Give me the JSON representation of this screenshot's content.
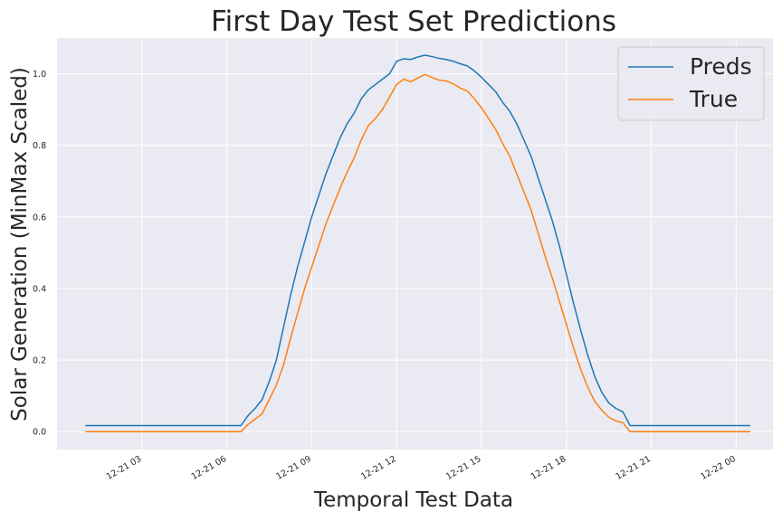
{
  "chart_data": {
    "type": "line",
    "title": "First Day Test Set Predictions",
    "xlabel": "Temporal Test Data",
    "ylabel": "Solar Generation (MinMax Scaled)",
    "x_unit": "hours from 2023-12-21 00:00",
    "xlim": [
      0.0,
      25.3
    ],
    "ylim": [
      -0.05,
      1.1
    ],
    "x_ticks": [
      3,
      6,
      9,
      12,
      15,
      18,
      21,
      24
    ],
    "x_tick_labels": [
      "12-21 03",
      "12-21 06",
      "12-21 09",
      "12-21 12",
      "12-21 15",
      "12-21 18",
      "12-21 21",
      "12-22 00"
    ],
    "y_ticks": [
      0.0,
      0.2,
      0.4,
      0.6,
      0.8,
      1.0
    ],
    "y_tick_labels": [
      "0.0",
      "0.2",
      "0.4",
      "0.6",
      "0.8",
      "1.0"
    ],
    "grid": true,
    "legend_position": "top-right",
    "background": "#eaeaf2",
    "series": [
      {
        "name": "Preds",
        "color": "#1f77b4",
        "x": [
          1.0,
          6.5,
          6.75,
          7.0,
          7.25,
          7.5,
          7.75,
          8.0,
          8.25,
          8.5,
          8.75,
          9.0,
          9.25,
          9.5,
          9.75,
          10.0,
          10.25,
          10.5,
          10.75,
          11.0,
          11.25,
          11.5,
          11.75,
          12.0,
          12.25,
          12.5,
          12.75,
          13.0,
          13.25,
          13.5,
          13.75,
          14.0,
          14.25,
          14.5,
          14.75,
          15.0,
          15.25,
          15.5,
          15.75,
          16.0,
          16.25,
          16.5,
          16.75,
          17.0,
          17.25,
          17.5,
          17.75,
          18.0,
          18.25,
          18.5,
          18.75,
          19.0,
          19.25,
          19.5,
          19.75,
          20.0,
          20.25,
          20.5,
          24.5
        ],
        "values": [
          0.017,
          0.017,
          0.045,
          0.065,
          0.09,
          0.14,
          0.2,
          0.29,
          0.38,
          0.46,
          0.53,
          0.6,
          0.66,
          0.72,
          0.77,
          0.82,
          0.86,
          0.89,
          0.93,
          0.955,
          0.97,
          0.985,
          1.0,
          1.035,
          1.042,
          1.04,
          1.047,
          1.052,
          1.048,
          1.043,
          1.04,
          1.035,
          1.028,
          1.022,
          1.008,
          0.99,
          0.97,
          0.95,
          0.92,
          0.895,
          0.86,
          0.815,
          0.77,
          0.71,
          0.65,
          0.59,
          0.52,
          0.44,
          0.36,
          0.285,
          0.215,
          0.155,
          0.11,
          0.08,
          0.065,
          0.055,
          0.017,
          0.017,
          0.017
        ]
      },
      {
        "name": "True",
        "color": "#ff7f0e",
        "x": [
          1.0,
          6.5,
          6.75,
          7.0,
          7.25,
          7.5,
          7.75,
          8.0,
          8.25,
          8.5,
          8.75,
          9.0,
          9.25,
          9.5,
          9.75,
          10.0,
          10.25,
          10.5,
          10.75,
          11.0,
          11.25,
          11.5,
          11.75,
          12.0,
          12.25,
          12.5,
          12.75,
          13.0,
          13.25,
          13.5,
          13.75,
          14.0,
          14.25,
          14.5,
          14.75,
          15.0,
          15.25,
          15.5,
          15.75,
          16.0,
          16.25,
          16.5,
          16.75,
          17.0,
          17.25,
          17.5,
          17.75,
          18.0,
          18.25,
          18.5,
          18.75,
          19.0,
          19.25,
          19.5,
          19.75,
          20.0,
          20.25,
          20.5,
          24.5
        ],
        "values": [
          0.0,
          0.0,
          0.02,
          0.035,
          0.05,
          0.09,
          0.13,
          0.185,
          0.26,
          0.33,
          0.4,
          0.46,
          0.52,
          0.58,
          0.63,
          0.68,
          0.725,
          0.765,
          0.815,
          0.855,
          0.875,
          0.9,
          0.935,
          0.97,
          0.985,
          0.978,
          0.988,
          0.998,
          0.99,
          0.982,
          0.98,
          0.972,
          0.96,
          0.952,
          0.93,
          0.905,
          0.875,
          0.845,
          0.805,
          0.77,
          0.72,
          0.67,
          0.62,
          0.555,
          0.49,
          0.43,
          0.365,
          0.3,
          0.235,
          0.175,
          0.125,
          0.085,
          0.06,
          0.04,
          0.03,
          0.025,
          0.0,
          0.0,
          0.0
        ]
      }
    ]
  }
}
